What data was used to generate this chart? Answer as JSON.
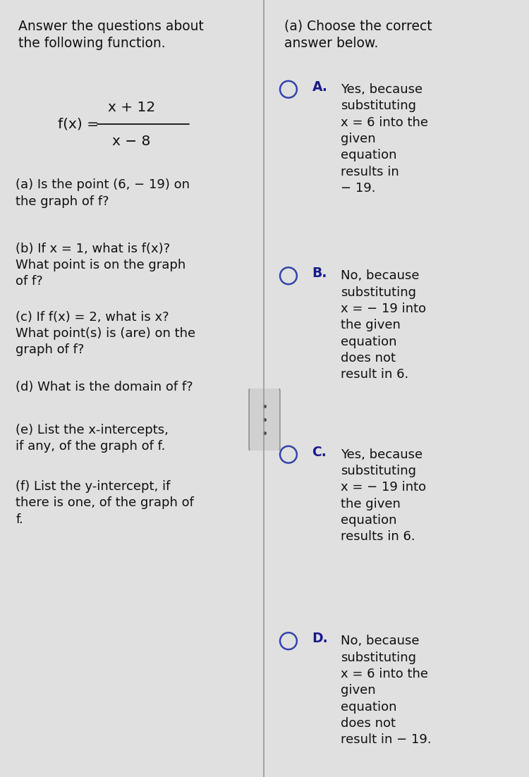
{
  "bg_color": "#c8c8c8",
  "panel_color": "#e0e0e0",
  "divider_color": "#999999",
  "title_left": "Answer the questions about\nthe following function.",
  "function_numerator": "x + 12",
  "function_denominator": "x − 8",
  "function_label": "f(x) =",
  "questions": [
    "(a) Is the point (6, − 19) on\nthe graph of f?",
    "(b) If x = 1, what is f(x)?\nWhat point is on the graph\nof f?",
    "(c) If f(x) = 2, what is x?\nWhat point(s) is (are) on the\ngraph of f?",
    "(d) What is the domain of f?",
    "(e) List the x-intercepts,\nif any, of the graph of f.",
    "(f) List the y-intercept, if\nthere is one, of the graph of\nf."
  ],
  "right_title": "(a) Choose the correct\nanswer below.",
  "options": [
    {
      "label": "A.",
      "text": "Yes, because\nsubstituting\nx = 6 into the\ngiven\nequation\nresults in\n− 19."
    },
    {
      "label": "B.",
      "text": "No, because\nsubstituting\nx = − 19 into\nthe given\nequation\ndoes not\nresult in 6."
    },
    {
      "label": "C.",
      "text": "Yes, because\nsubstituting\nx = − 19 into\nthe given\nequation\nresults in 6."
    },
    {
      "label": "D.",
      "text": "No, because\nsubstituting\nx = 6 into the\ngiven\nequation\ndoes not\nresult in − 19."
    }
  ],
  "label_color": "#1a1a8c",
  "text_color": "#111111",
  "circle_color": "#3344aa",
  "font_size_title": 13.5,
  "font_size_text": 13.0,
  "font_size_option_label": 13.5,
  "font_size_function": 14.5
}
